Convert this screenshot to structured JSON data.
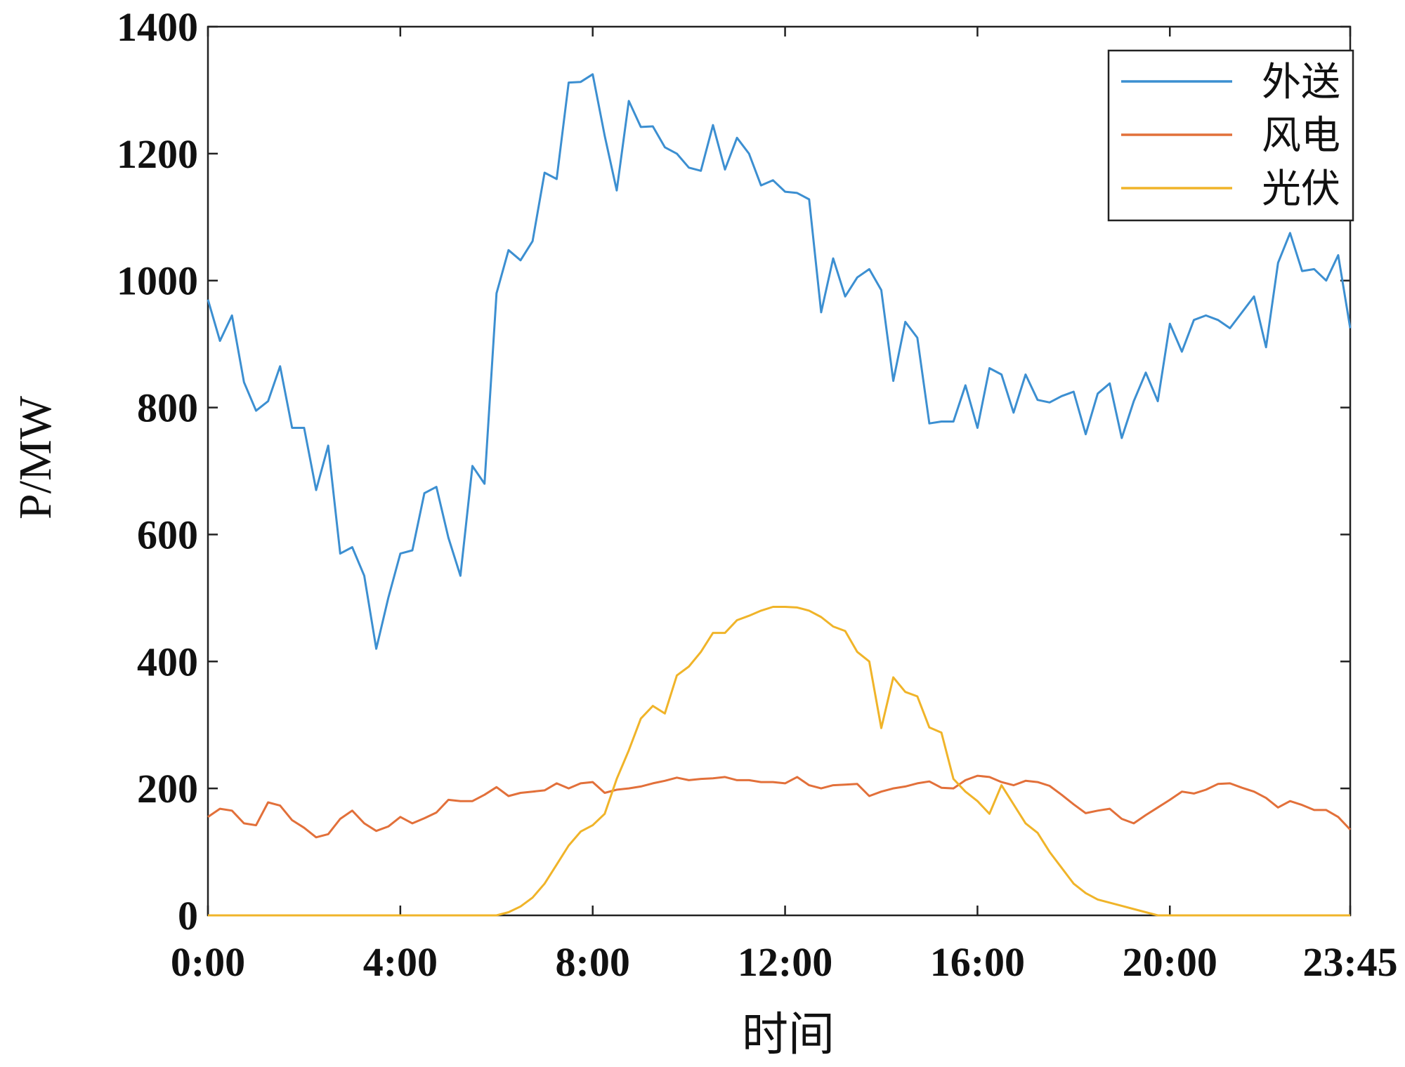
{
  "chart_data": {
    "type": "line",
    "title": "",
    "xlabel": "时间",
    "ylabel": "P/MW",
    "xlim": [
      0,
      95
    ],
    "ylim": [
      0,
      1400
    ],
    "grid": false,
    "legend_position": "top-right",
    "x_tick_positions": [
      0,
      16,
      32,
      48,
      64,
      80,
      95
    ],
    "x_tick_labels": [
      "0:00",
      "4:00",
      "8:00",
      "12:00",
      "16:00",
      "20:00",
      "23:45"
    ],
    "y_ticks": [
      0,
      200,
      400,
      600,
      800,
      1000,
      1200,
      1400
    ],
    "series": [
      {
        "name": "外送",
        "color": "#3c8fd1",
        "values": [
          970,
          905,
          945,
          840,
          795,
          810,
          865,
          768,
          768,
          670,
          740,
          570,
          580,
          535,
          420,
          500,
          570,
          575,
          665,
          675,
          595,
          535,
          708,
          680,
          980,
          1048,
          1032,
          1062,
          1170,
          1160,
          1312,
          1313,
          1325,
          1228,
          1142,
          1283,
          1242,
          1243,
          1210,
          1200,
          1178,
          1173,
          1245,
          1175,
          1225,
          1200,
          1150,
          1158,
          1140,
          1138,
          1128,
          950,
          1035,
          975,
          1005,
          1018,
          985,
          842,
          935,
          910,
          775,
          778,
          778,
          835,
          768,
          862,
          852,
          792,
          852,
          812,
          808,
          818,
          825,
          758,
          822,
          838,
          752,
          810,
          855,
          810,
          932,
          888,
          938,
          945,
          938,
          925,
          950,
          975,
          895,
          1028,
          1075,
          1015,
          1018,
          1000,
          1040,
          925
        ]
      },
      {
        "name": "风电",
        "color": "#e2703a",
        "values": [
          155,
          168,
          165,
          145,
          142,
          178,
          173,
          150,
          138,
          123,
          128,
          152,
          165,
          145,
          133,
          140,
          155,
          145,
          153,
          162,
          182,
          180,
          180,
          190,
          202,
          188,
          193,
          195,
          197,
          208,
          200,
          208,
          210,
          193,
          198,
          200,
          203,
          208,
          212,
          217,
          213,
          215,
          216,
          218,
          213,
          213,
          210,
          210,
          208,
          218,
          205,
          200,
          205,
          206,
          207,
          188,
          195,
          200,
          203,
          208,
          211,
          201,
          200,
          213,
          220,
          218,
          210,
          205,
          212,
          210,
          204,
          190,
          175,
          161,
          165,
          168,
          152,
          145,
          158,
          170,
          182,
          195,
          192,
          198,
          207,
          208,
          201,
          195,
          185,
          170,
          180,
          174,
          166,
          166,
          155,
          135
        ]
      },
      {
        "name": "光伏",
        "color": "#f0b429",
        "values": [
          0,
          0,
          0,
          0,
          0,
          0,
          0,
          0,
          0,
          0,
          0,
          0,
          0,
          0,
          0,
          0,
          0,
          0,
          0,
          0,
          0,
          0,
          0,
          0,
          0,
          5,
          14,
          28,
          50,
          80,
          110,
          132,
          142,
          160,
          215,
          260,
          310,
          330,
          318,
          378,
          392,
          415,
          445,
          445,
          465,
          472,
          480,
          486,
          486,
          485,
          480,
          470,
          455,
          448,
          415,
          400,
          295,
          375,
          352,
          345,
          296,
          288,
          215,
          195,
          180,
          160,
          205,
          175,
          145,
          130,
          100,
          75,
          50,
          35,
          25,
          20,
          15,
          10,
          5,
          0,
          0,
          0,
          0,
          0,
          0,
          0,
          0,
          0,
          0,
          0,
          0,
          0,
          0,
          0,
          0,
          0
        ]
      }
    ]
  }
}
